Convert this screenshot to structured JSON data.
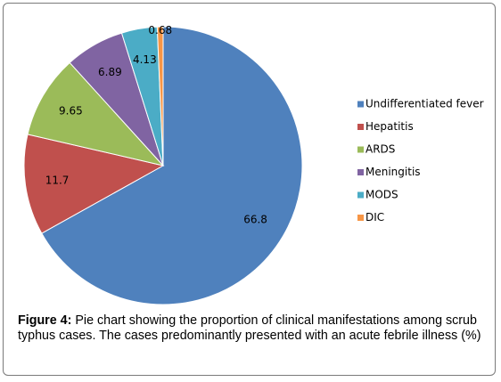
{
  "chart_data": {
    "type": "pie",
    "categories": [
      "Undifferentiated fever",
      "Hepatitis",
      "ARDS",
      "Meningitis",
      "MODS",
      "DIC"
    ],
    "values": [
      66.8,
      11.7,
      9.65,
      6.89,
      4.13,
      0.68
    ],
    "colors": [
      "#4f81bd",
      "#c0504d",
      "#9bbb59",
      "#8064a2",
      "#4bacc6",
      "#f79646"
    ],
    "legend": "right"
  },
  "caption": {
    "label": "Figure 4:",
    "text": "Pie chart showing the proportion of clinical manifestations among scrub typhus cases. The cases predominantly presented with an acute febrile illness (%)"
  }
}
